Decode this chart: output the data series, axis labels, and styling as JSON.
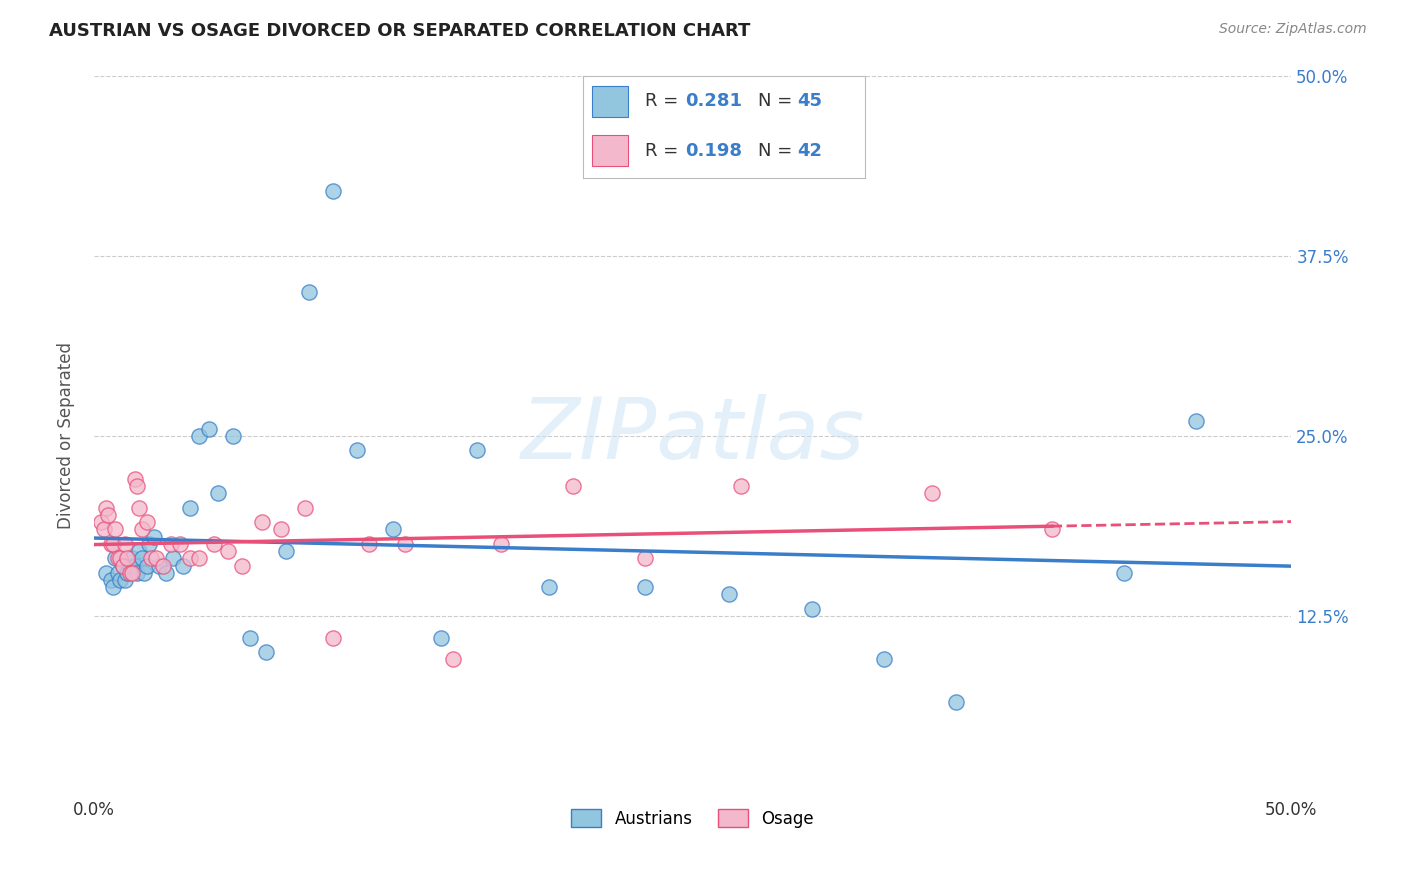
{
  "title": "AUSTRIAN VS OSAGE DIVORCED OR SEPARATED CORRELATION CHART",
  "source": "Source: ZipAtlas.com",
  "ylabel": "Divorced or Separated",
  "xlim": [
    0.0,
    0.5
  ],
  "ylim": [
    0.0,
    0.5
  ],
  "ytick_values": [
    0.125,
    0.25,
    0.375,
    0.5
  ],
  "ytick_labels": [
    "12.5%",
    "25.0%",
    "37.5%",
    "50.0%"
  ],
  "xtick_values": [
    0.0,
    0.5
  ],
  "xtick_labels": [
    "0.0%",
    "50.0%"
  ],
  "color_austrians": "#92c5de",
  "color_osage": "#f4b8cc",
  "color_trend_austrians": "#3a7dc9",
  "color_trend_osage": "#e8507a",
  "background_color": "#ffffff",
  "grid_color": "#cccccc",
  "austrians_x": [
    0.005,
    0.007,
    0.008,
    0.009,
    0.01,
    0.011,
    0.012,
    0.013,
    0.014,
    0.015,
    0.016,
    0.017,
    0.018,
    0.019,
    0.02,
    0.021,
    0.022,
    0.023,
    0.025,
    0.027,
    0.03,
    0.033,
    0.037,
    0.04,
    0.044,
    0.048,
    0.052,
    0.058,
    0.065,
    0.072,
    0.08,
    0.09,
    0.1,
    0.11,
    0.125,
    0.145,
    0.16,
    0.19,
    0.23,
    0.265,
    0.3,
    0.33,
    0.36,
    0.43,
    0.46
  ],
  "austrians_y": [
    0.155,
    0.15,
    0.145,
    0.165,
    0.155,
    0.15,
    0.16,
    0.15,
    0.155,
    0.16,
    0.165,
    0.16,
    0.155,
    0.17,
    0.165,
    0.155,
    0.16,
    0.175,
    0.18,
    0.16,
    0.155,
    0.165,
    0.16,
    0.2,
    0.25,
    0.255,
    0.21,
    0.25,
    0.11,
    0.1,
    0.17,
    0.35,
    0.42,
    0.24,
    0.185,
    0.11,
    0.24,
    0.145,
    0.145,
    0.14,
    0.13,
    0.095,
    0.065,
    0.155,
    0.26
  ],
  "osage_x": [
    0.003,
    0.004,
    0.005,
    0.006,
    0.007,
    0.008,
    0.009,
    0.01,
    0.011,
    0.012,
    0.013,
    0.014,
    0.015,
    0.016,
    0.017,
    0.018,
    0.019,
    0.02,
    0.022,
    0.024,
    0.026,
    0.029,
    0.032,
    0.036,
    0.04,
    0.044,
    0.05,
    0.056,
    0.062,
    0.07,
    0.078,
    0.088,
    0.1,
    0.115,
    0.13,
    0.15,
    0.17,
    0.2,
    0.23,
    0.27,
    0.35,
    0.4
  ],
  "osage_y": [
    0.19,
    0.185,
    0.2,
    0.195,
    0.175,
    0.175,
    0.185,
    0.165,
    0.165,
    0.16,
    0.175,
    0.165,
    0.155,
    0.155,
    0.22,
    0.215,
    0.2,
    0.185,
    0.19,
    0.165,
    0.165,
    0.16,
    0.175,
    0.175,
    0.165,
    0.165,
    0.175,
    0.17,
    0.16,
    0.19,
    0.185,
    0.2,
    0.11,
    0.175,
    0.175,
    0.095,
    0.175,
    0.215,
    0.165,
    0.215,
    0.21,
    0.185
  ],
  "trend_austrians": [
    0.145,
    0.25
  ],
  "trend_osage_solid_end": 0.4,
  "trend_osage": [
    0.172,
    0.21
  ]
}
